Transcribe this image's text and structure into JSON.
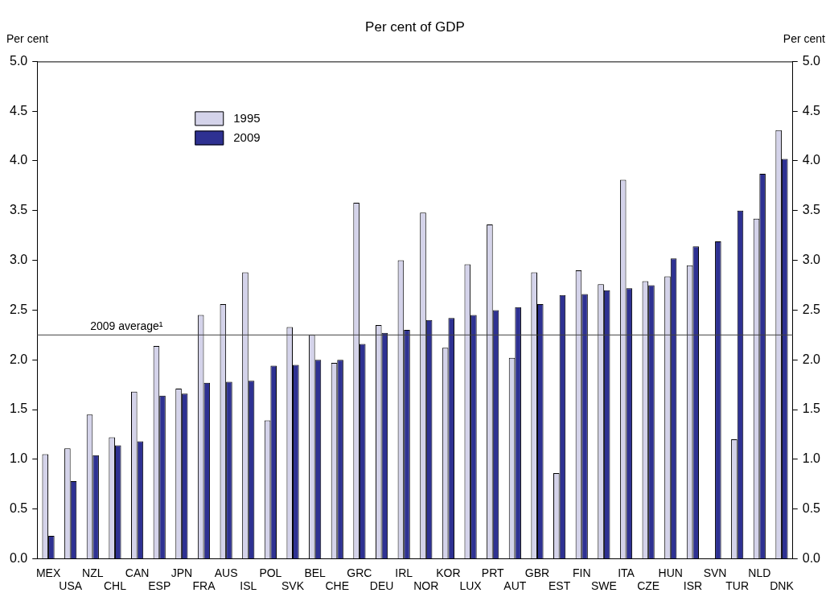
{
  "chart_data": {
    "type": "bar",
    "title": "Per cent of GDP",
    "ylabel": "Per cent",
    "y2label": "Per cent",
    "categories": [
      "MEX",
      "USA",
      "NZL",
      "CHL",
      "CAN",
      "ESP",
      "JPN",
      "FRA",
      "AUS",
      "ISL",
      "POL",
      "SVK",
      "BEL",
      "CHE",
      "GRC",
      "DEU",
      "IRL",
      "NOR",
      "KOR",
      "LUX",
      "PRT",
      "AUT",
      "GBR",
      "EST",
      "FIN",
      "SWE",
      "ITA",
      "CZE",
      "HUN",
      "ISR",
      "SVN",
      "TUR",
      "NLD",
      "DNK"
    ],
    "series": [
      {
        "name": "1995",
        "color": "#d4d3ea",
        "values": [
          1.05,
          1.11,
          1.45,
          1.22,
          1.68,
          2.14,
          1.71,
          2.45,
          2.56,
          2.88,
          1.39,
          2.33,
          2.25,
          1.97,
          3.58,
          2.35,
          3.0,
          3.48,
          2.12,
          2.96,
          3.36,
          2.02,
          2.88,
          0.86,
          2.9,
          2.76,
          3.81,
          2.79,
          2.84,
          2.95,
          null,
          1.2,
          3.42,
          4.31
        ]
      },
      {
        "name": "2009",
        "color": "#2e3192",
        "values": [
          0.23,
          0.78,
          1.04,
          1.14,
          1.18,
          1.64,
          1.66,
          1.77,
          1.78,
          1.79,
          1.94,
          1.95,
          2.0,
          2.0,
          2.16,
          2.27,
          2.3,
          2.4,
          2.42,
          2.45,
          2.5,
          2.53,
          2.56,
          2.65,
          2.66,
          2.7,
          2.72,
          2.75,
          3.02,
          3.14,
          3.19,
          3.5,
          3.87,
          4.02
        ]
      }
    ],
    "ylim": [
      0,
      5
    ],
    "yticks": [
      {
        "value": 0,
        "label": "0.0"
      },
      {
        "value": 0.5,
        "label": "0.5"
      },
      {
        "value": 1,
        "label": "1.0"
      },
      {
        "value": 1.5,
        "label": "1.5"
      },
      {
        "value": 2,
        "label": "2.0"
      },
      {
        "value": 2.5,
        "label": "2.5"
      },
      {
        "value": 3,
        "label": "3.0"
      },
      {
        "value": 3.5,
        "label": "3.5"
      },
      {
        "value": 4,
        "label": "4.0"
      },
      {
        "value": 4.5,
        "label": "4.5"
      },
      {
        "value": 5,
        "label": "5.0"
      }
    ],
    "y2lim": [
      0,
      5
    ],
    "y2ticks": [
      {
        "value": 0,
        "label": "0.0"
      },
      {
        "value": 0.5,
        "label": "0.5"
      },
      {
        "value": 1,
        "label": "1.0"
      },
      {
        "value": 1.5,
        "label": "1.5"
      },
      {
        "value": 2,
        "label": "2.0"
      },
      {
        "value": 2.5,
        "label": "2.5"
      },
      {
        "value": 3,
        "label": "3.0"
      },
      {
        "value": 3.5,
        "label": "3.5"
      },
      {
        "value": 4,
        "label": "4.0"
      },
      {
        "value": 4.5,
        "label": "4.5"
      },
      {
        "value": 5,
        "label": "5.0"
      }
    ],
    "ref_lines": [
      {
        "axis": "y",
        "value": 2.25,
        "label": "2009 average¹",
        "color": "#404040"
      }
    ],
    "legend": "top left"
  }
}
